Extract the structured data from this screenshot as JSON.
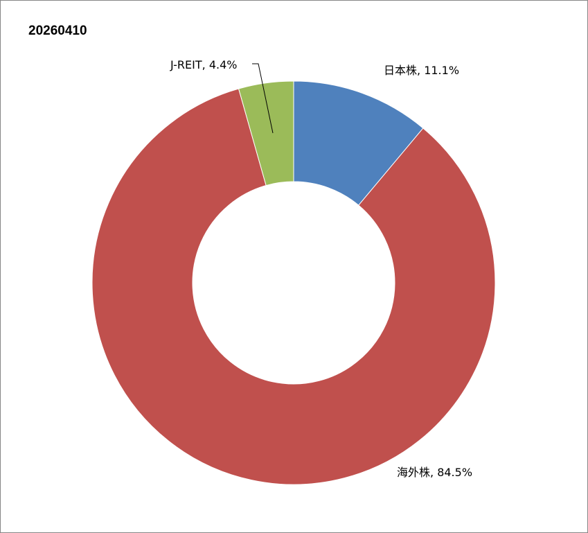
{
  "chart_data": {
    "type": "pie",
    "style": "donut",
    "title": "20260410",
    "start_angle": "12 o'clock",
    "direction": "clockwise",
    "slices": [
      {
        "label": "日本株",
        "value": 11.1,
        "value_text": "11.1%",
        "color": "#4F81BD"
      },
      {
        "label": "海外株",
        "value": 84.5,
        "value_text": "84.5%",
        "color": "#C0504D"
      },
      {
        "label": "J-REIT",
        "value": 4.4,
        "value_text": "4.4%",
        "color": "#9BBB59"
      }
    ],
    "legend": "none"
  }
}
